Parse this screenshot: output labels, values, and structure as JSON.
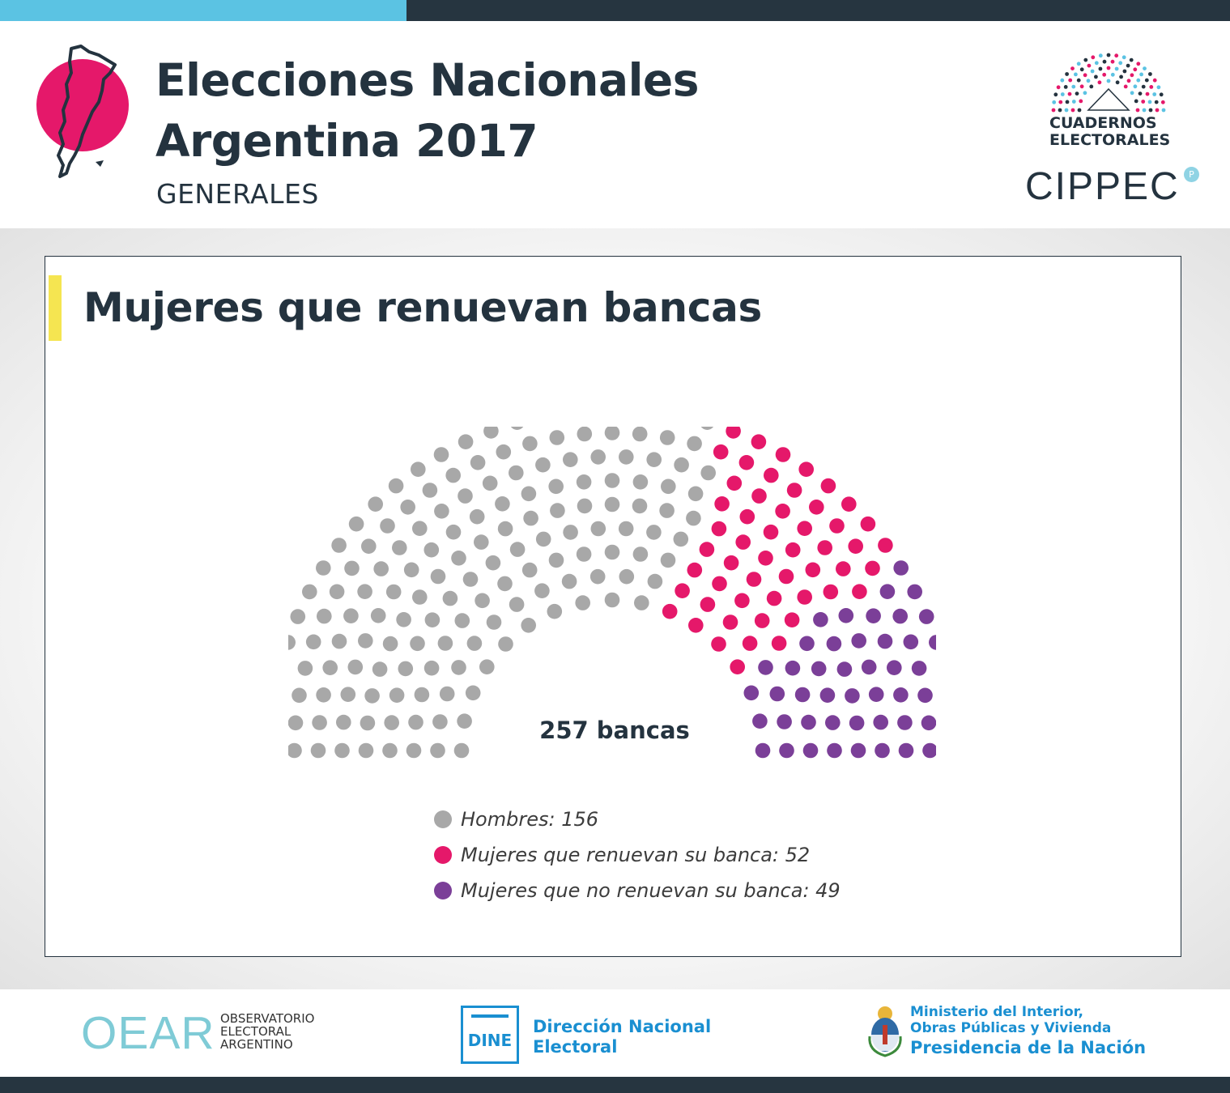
{
  "header": {
    "title_line1": "Elecciones Nacionales",
    "title_line2": "Argentina 2017",
    "subtitle": "GENERALES",
    "brand_line1": "CUADERNOS",
    "brand_line2": "ELECTORALES",
    "org": "CIPPEC",
    "org_badge": "P"
  },
  "colors": {
    "top_accent": "#5bc3e3",
    "dark": "#263540",
    "title_accent": "#f5e551",
    "magenta": "#e5186a",
    "purple": "#7b3f98",
    "gray": "#a8a8a8",
    "footer_blue": "#1a8fd1"
  },
  "chart_data": {
    "type": "parliament",
    "title": "Mujeres que renuevan bancas",
    "total_label": "257 bancas",
    "total": 257,
    "series": [
      {
        "name": "Hombres",
        "label": "Hombres: 156",
        "value": 156,
        "color": "#a8a8a8"
      },
      {
        "name": "Mujeres que renuevan su banca",
        "label": "Mujeres que renuevan su banca: 52",
        "value": 52,
        "color": "#e5186a"
      },
      {
        "name": "Mujeres que no renuevan su banca",
        "label": "Mujeres que no renuevan su banca: 49",
        "value": 49,
        "color": "#7b3f98"
      }
    ]
  },
  "footer": {
    "oear_mark": "OEAR",
    "oear_line1": "OBSERVATORIO",
    "oear_line2": "ELECTORAL",
    "oear_line3": "ARGENTINO",
    "dine_box": "DINE",
    "dine_line1": "Dirección Nacional",
    "dine_line2": "Electoral",
    "ministry_line1": "Ministerio del Interior,",
    "ministry_line2": "Obras Públicas y Vivienda",
    "ministry_line3": "Presidencia de la Nación"
  }
}
